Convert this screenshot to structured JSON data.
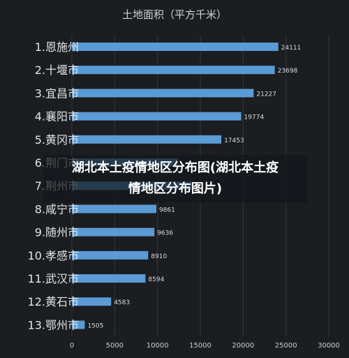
{
  "chart_data": {
    "type": "bar",
    "orientation": "horizontal",
    "title": "土地面积（平方千米）",
    "categories": [
      "1.恩施州",
      "2.十堰市",
      "3.宜昌市",
      "4.襄阳市",
      "5.黄冈市",
      "6.荆门市",
      "7.荆州市",
      "8.咸宁市",
      "9.随州市",
      "10.孝感市",
      "11.武汉市",
      "12.黄石市",
      "13.鄂州市"
    ],
    "values": [
      24111,
      23698,
      21227,
      19774,
      17453,
      12404,
      14069,
      9861,
      9636,
      8910,
      8594,
      4583,
      1505
    ],
    "value_labels": [
      "24111",
      "23698",
      "21227",
      "19774",
      "17453",
      "",
      "",
      "9861",
      "9636",
      "8910",
      "8594",
      "4583",
      "1505"
    ],
    "xlim": [
      0,
      30000
    ],
    "xticks": [
      "0",
      "5000",
      "10000",
      "15000",
      "20000",
      "25000",
      "30000"
    ],
    "grid": true,
    "bar_color": "#5b9bd5"
  },
  "overlay": {
    "line1": "湖北本土疫情地区分布图(湖北本土疫",
    "line2": "情地区分布图片)"
  }
}
